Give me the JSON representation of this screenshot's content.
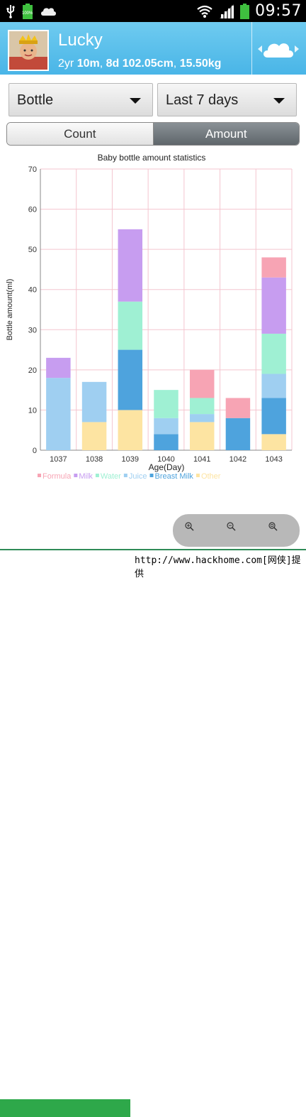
{
  "status_bar": {
    "time": "09:57",
    "battery_label": "100%",
    "icons": [
      "usb-icon",
      "battery-icon",
      "cloud-notification-icon",
      "wifi-icon",
      "signal-icon",
      "battery-icon"
    ]
  },
  "profile": {
    "name": "Lucky",
    "age_years": "2yr",
    "age_months": "10m",
    "age_days": "8d",
    "height": "102.05cm",
    "weight": "15.50kg"
  },
  "filters": {
    "type_selected": "Bottle",
    "range_selected": "Last 7 days"
  },
  "tabs": {
    "count": "Count",
    "amount": "Amount",
    "active": "amount"
  },
  "colors": {
    "header": "#49b5e7",
    "formula": "#f7a4b4",
    "milk": "#c79df0",
    "water": "#9ff0d3",
    "juice": "#9fcff1",
    "breast_milk": "#4ea3dd",
    "other": "#fde4a2",
    "grid": "#f4c5cf",
    "footer_green": "#2ea84a"
  },
  "chart_data": {
    "type": "bar",
    "title": "Baby bottle amount statistics",
    "xlabel": "Age(Day)",
    "ylabel": "Bottle amount(ml)",
    "ylim": [
      0,
      70
    ],
    "yticks": [
      0,
      10,
      20,
      30,
      40,
      50,
      60,
      70
    ],
    "grid": true,
    "legend_position": "bottom",
    "categories": [
      "1037",
      "1038",
      "1039",
      "1040",
      "1041",
      "1042",
      "1043"
    ],
    "series": [
      {
        "name": "Formula",
        "color": "#f7a4b4",
        "values": [
          0,
          0,
          0,
          0,
          7,
          5,
          5
        ]
      },
      {
        "name": "Milk",
        "color": "#c79df0",
        "values": [
          5,
          0,
          18,
          0,
          0,
          0,
          14
        ]
      },
      {
        "name": "Water",
        "color": "#9ff0d3",
        "values": [
          0,
          0,
          12,
          7,
          4,
          0,
          10
        ]
      },
      {
        "name": "Juice",
        "color": "#9fcff1",
        "values": [
          18,
          10,
          0,
          4,
          2,
          0,
          6
        ]
      },
      {
        "name": "Breast Milk",
        "color": "#4ea3dd",
        "values": [
          0,
          0,
          15,
          4,
          0,
          8,
          9
        ]
      },
      {
        "name": "Other",
        "color": "#fde4a2",
        "values": [
          0,
          7,
          10,
          0,
          7,
          0,
          4
        ]
      }
    ]
  },
  "zoom_controls": [
    "zoom-in-icon",
    "zoom-out-icon",
    "zoom-reset-icon"
  ],
  "footer": {
    "text": "http://www.hackhome.com[网侠]提供"
  }
}
